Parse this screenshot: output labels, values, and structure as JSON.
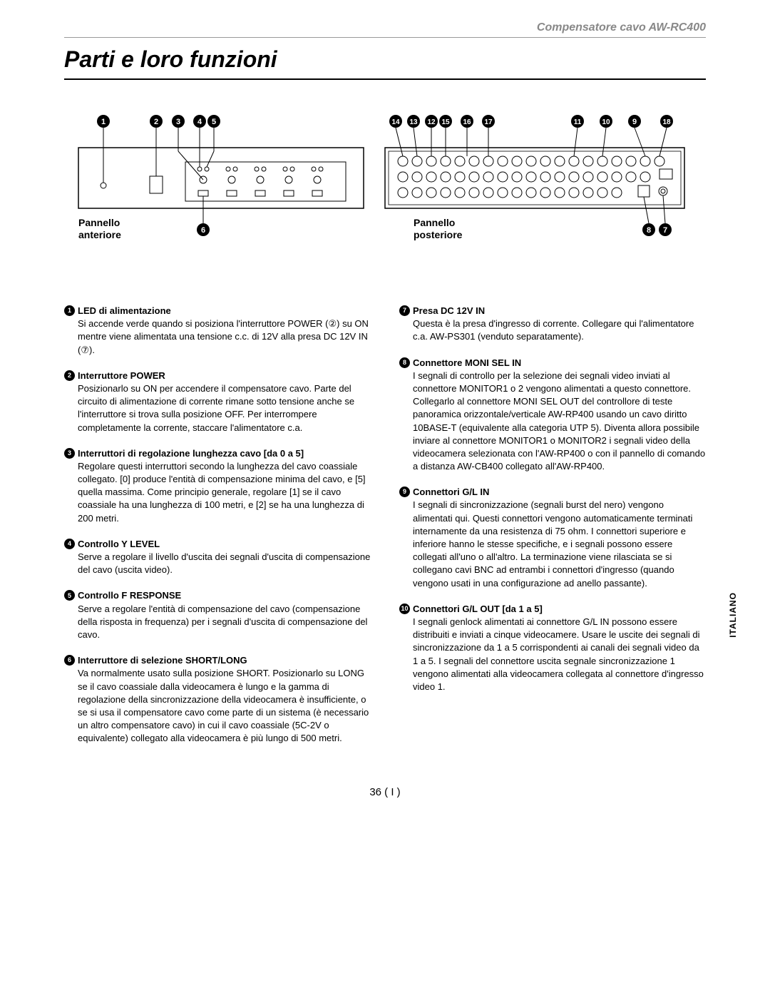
{
  "header": "Compensatore cavo  AW-RC400",
  "title": "Parti e loro funzioni",
  "side_tab": "ITALIANO",
  "page_number": "36 ( I )",
  "panel_front": "Pannello anteriore",
  "panel_rear": "Pannello posteriore",
  "callout_nums_top_left": [
    "1",
    "2",
    "3",
    "4",
    "5"
  ],
  "callout_nums_top_right": [
    "14",
    "13",
    "12",
    "15",
    "16",
    "17"
  ],
  "callout_nums_top_far_right": [
    "11",
    "10",
    "9",
    "18"
  ],
  "callout_bottom_left": "6",
  "callout_bottom_right": [
    "8",
    "7"
  ],
  "left_items": [
    {
      "n": "1",
      "title": "LED di alimentazione",
      "body": "Si accende verde quando si posiziona l'interruttore POWER (②) su ON mentre viene alimentata una tensione c.c. di 12V alla presa DC 12V IN (⑦)."
    },
    {
      "n": "2",
      "title": "Interruttore POWER",
      "body": "Posizionarlo su ON per accendere il compensatore cavo. Parte del circuito di alimentazione di corrente rimane sotto tensione anche se l'interruttore si trova sulla posizione OFF. Per interrompere completamente la corrente, staccare l'alimentatore c.a."
    },
    {
      "n": "3",
      "title": "Interruttori di regolazione lunghezza cavo [da 0 a 5]",
      "body": "Regolare questi interruttori secondo la lunghezza del cavo coassiale collegato. [0] produce l'entità di compensazione minima del cavo, e [5] quella massima. Come principio generale, regolare [1] se il cavo coassiale ha una lunghezza di 100 metri, e [2] se ha una lunghezza di 200 metri."
    },
    {
      "n": "4",
      "title": "Controllo Y LEVEL",
      "body": "Serve a regolare il livello d'uscita dei segnali d'uscita di compensazione del cavo (uscita video)."
    },
    {
      "n": "5",
      "title": "Controllo F RESPONSE",
      "body": "Serve a regolare l'entità di compensazione del cavo (compensazione della risposta in frequenza) per i segnali d'uscita di compensazione del cavo."
    },
    {
      "n": "6",
      "title": "Interruttore di selezione SHORT/LONG",
      "body": "Va normalmente usato sulla posizione SHORT. Posizionarlo su LONG se il cavo coassiale dalla videocamera è lungo e la gamma di regolazione della sincronizzazione della videocamera è insufficiente, o se si usa il compensatore cavo come parte di un sistema (è necessario un altro compensatore cavo) in cui il cavo coassiale (5C-2V o equivalente) collegato alla videocamera è più lungo di 500 metri."
    }
  ],
  "right_items": [
    {
      "n": "7",
      "title": " Presa DC 12V IN",
      "body": "Questa è la presa d'ingresso di corrente. Collegare qui l'alimentatore c.a. AW-PS301 (venduto separatamente)."
    },
    {
      "n": "8",
      "title": "Connettore MONI SEL IN",
      "body": "I segnali di controllo per la selezione dei segnali video inviati al connettore MONITOR1 o 2 vengono alimentati a questo connettore. Collegarlo al connettore MONI SEL OUT del controllore di teste panoramica orizzontale/verticale AW-RP400 usando un cavo diritto 10BASE-T (equivalente alla categoria UTP 5). Diventa allora possibile inviare al connettore MONITOR1 o MONITOR2 i segnali video della videocamera selezionata con l'AW-RP400 o con il pannello di comando a distanza AW-CB400 collegato all'AW-RP400."
    },
    {
      "n": "9",
      "title": "Connettori G/L IN",
      "body": "I segnali di sincronizzazione (segnali burst del nero) vengono alimentati qui.\nQuesti connettori vengono automaticamente terminati internamente da una resistenza di 75 ohm. I connettori superiore e inferiore hanno le stesse specifiche, e i segnali possono essere collegati all'uno o all'altro. La terminazione viene rilasciata se si collegano cavi BNC ad entrambi i connettori d'ingresso (quando vengono usati in una configurazione ad anello passante)."
    },
    {
      "n": "10",
      "title": "Connettori G/L OUT [da 1 a 5]",
      "body": "I segnali genlock alimentati ai connettore G/L IN possono essere distribuiti e inviati a cinque videocamere.\nUsare le uscite dei segnali di sincronizzazione da 1 a 5 corrispondenti ai canali dei segnali video da 1 a 5.\nI segnali del connettore uscita segnale sincronizzazione 1 vengono alimentati alla videocamera collegata al connettore d'ingresso video 1."
    }
  ]
}
